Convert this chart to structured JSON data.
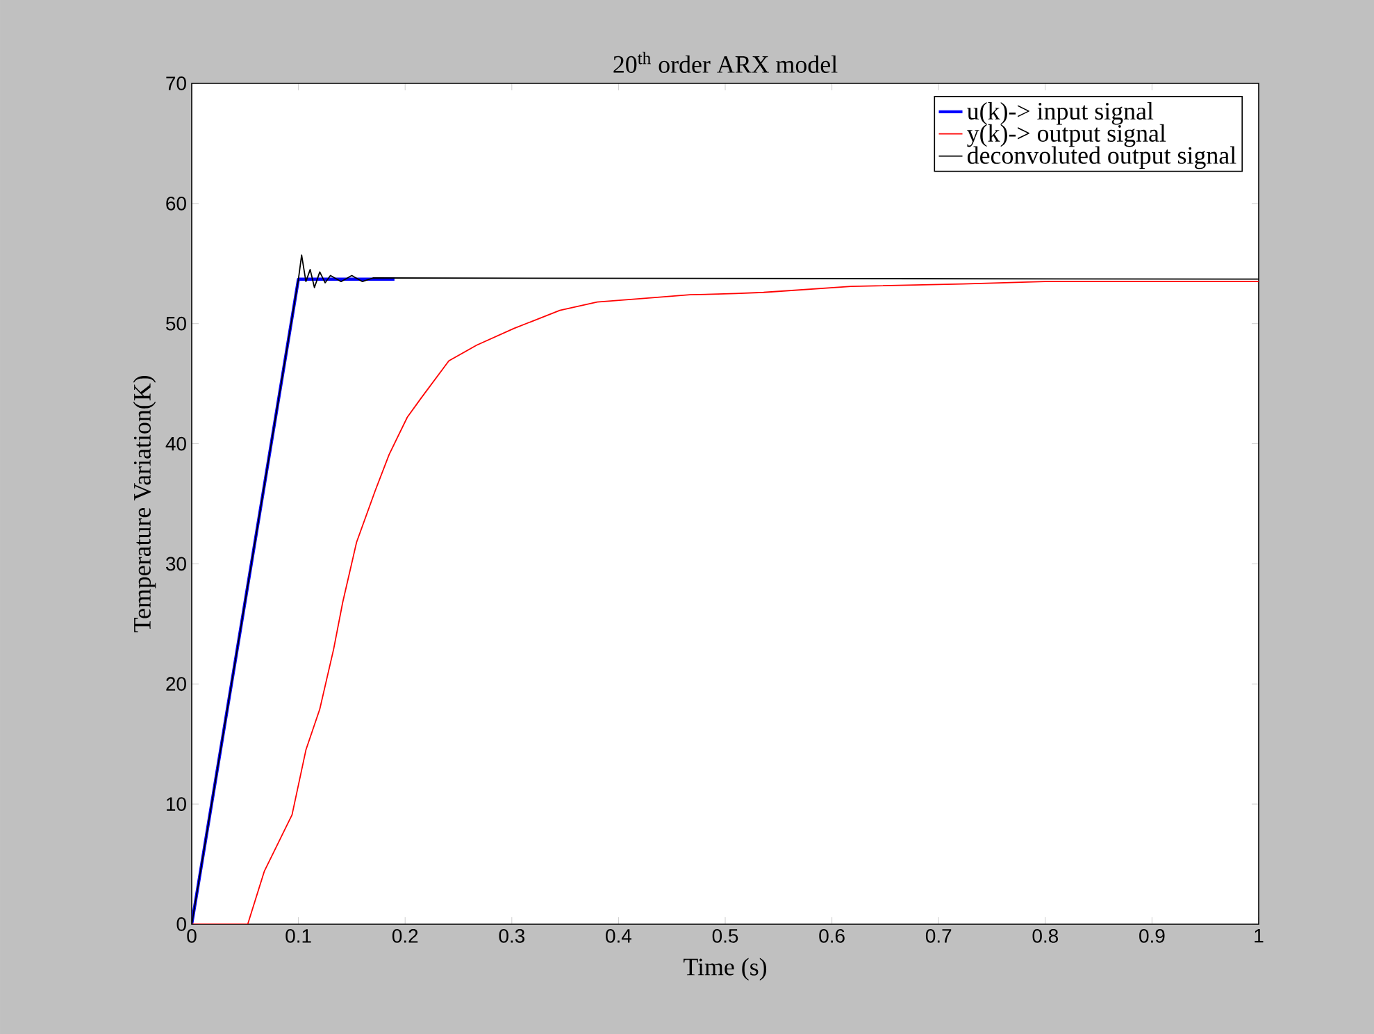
{
  "chart_data": {
    "type": "line",
    "title": "20$^{th}$ order ARX model",
    "xlabel": "Time (s)",
    "ylabel": "Temperature Variation(K)",
    "xlim": [
      0,
      1
    ],
    "ylim": [
      0,
      70
    ],
    "xticks": [
      0,
      0.1,
      0.2,
      0.3,
      0.4,
      0.5,
      0.6,
      0.7,
      0.8,
      0.9,
      1
    ],
    "yticks": [
      0,
      10,
      20,
      30,
      40,
      50,
      60,
      70
    ],
    "legend": "top right",
    "grid": false,
    "marker": "none",
    "line_style": "solid",
    "series": [
      {
        "name": "u(k)->  input signal",
        "color": "#0000ff",
        "x": [
          0,
          0.1,
          0.19
        ],
        "values": [
          0,
          53.7,
          53.7
        ]
      },
      {
        "name": "y(k)->  output signal",
        "color": "#ff0000",
        "x": [
          0,
          0.0525,
          0.068,
          0.094,
          0.107,
          0.12,
          0.133,
          0.1415,
          0.1545,
          0.172,
          0.185,
          0.202,
          0.215,
          0.241,
          0.267,
          0.302,
          0.345,
          0.38,
          0.424,
          0.467,
          0.51,
          0.536,
          0.618,
          0.723,
          0.8,
          1
        ],
        "values": [
          0,
          0,
          4.4,
          9.1,
          14.5,
          17.9,
          22.9,
          26.8,
          31.8,
          36.1,
          39.1,
          42.2,
          43.8,
          46.9,
          48.2,
          49.6,
          51.1,
          51.8,
          52.1,
          52.4,
          52.5,
          52.6,
          53.1,
          53.3,
          53.5,
          53.5
        ]
      },
      {
        "name": "deconvoluted output signal",
        "color": "#000000",
        "x": [
          0,
          0.1,
          0.103,
          0.107,
          0.111,
          0.115,
          0.12,
          0.125,
          0.13,
          0.14,
          0.15,
          0.16,
          0.17,
          1
        ],
        "values": [
          0,
          53.7,
          55.7,
          53.5,
          54.5,
          53.0,
          54.3,
          53.4,
          54.0,
          53.5,
          54.0,
          53.5,
          53.8,
          53.7
        ]
      }
    ]
  }
}
